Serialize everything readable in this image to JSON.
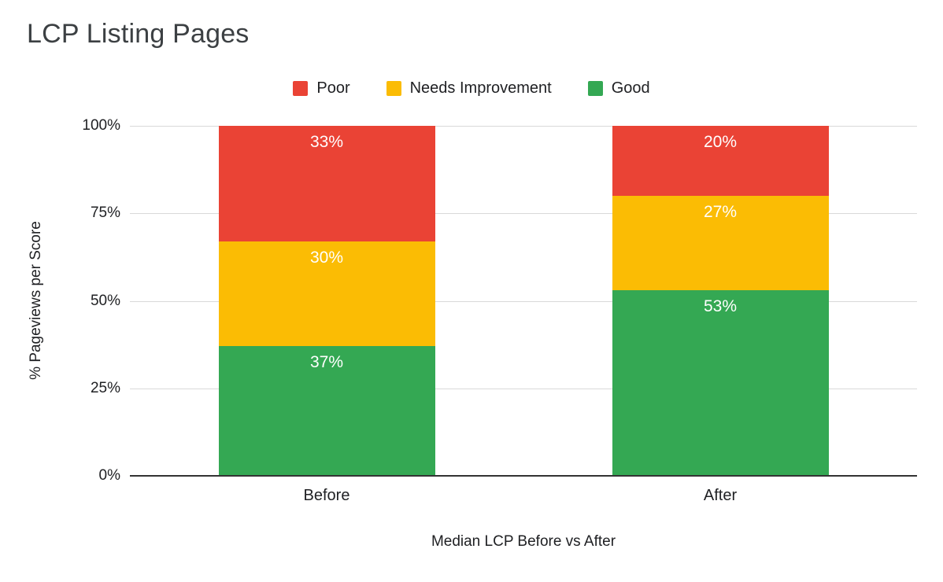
{
  "title": "LCP Listing Pages",
  "chart_data": {
    "type": "bar",
    "stacked": true,
    "orientation": "vertical",
    "title": "LCP Listing Pages",
    "xlabel": "Median LCP Before vs After",
    "ylabel": "% Pageviews per Score",
    "categories": [
      "Before",
      "After"
    ],
    "series": [
      {
        "name": "Poor",
        "color": "#EA4335",
        "values": [
          33,
          20
        ]
      },
      {
        "name": "Needs Improvement",
        "color": "#FBBC04",
        "values": [
          30,
          27
        ]
      },
      {
        "name": "Good",
        "color": "#34A853",
        "values": [
          37,
          53
        ]
      }
    ],
    "value_suffix": "%",
    "ylim": [
      0,
      100
    ],
    "yticks": [
      "100%",
      "75%",
      "50%",
      "25%",
      "0%"
    ],
    "grid": true,
    "legend_position": "top",
    "gridline_color": "#d9d9d9",
    "label_color": "#ffffff"
  }
}
